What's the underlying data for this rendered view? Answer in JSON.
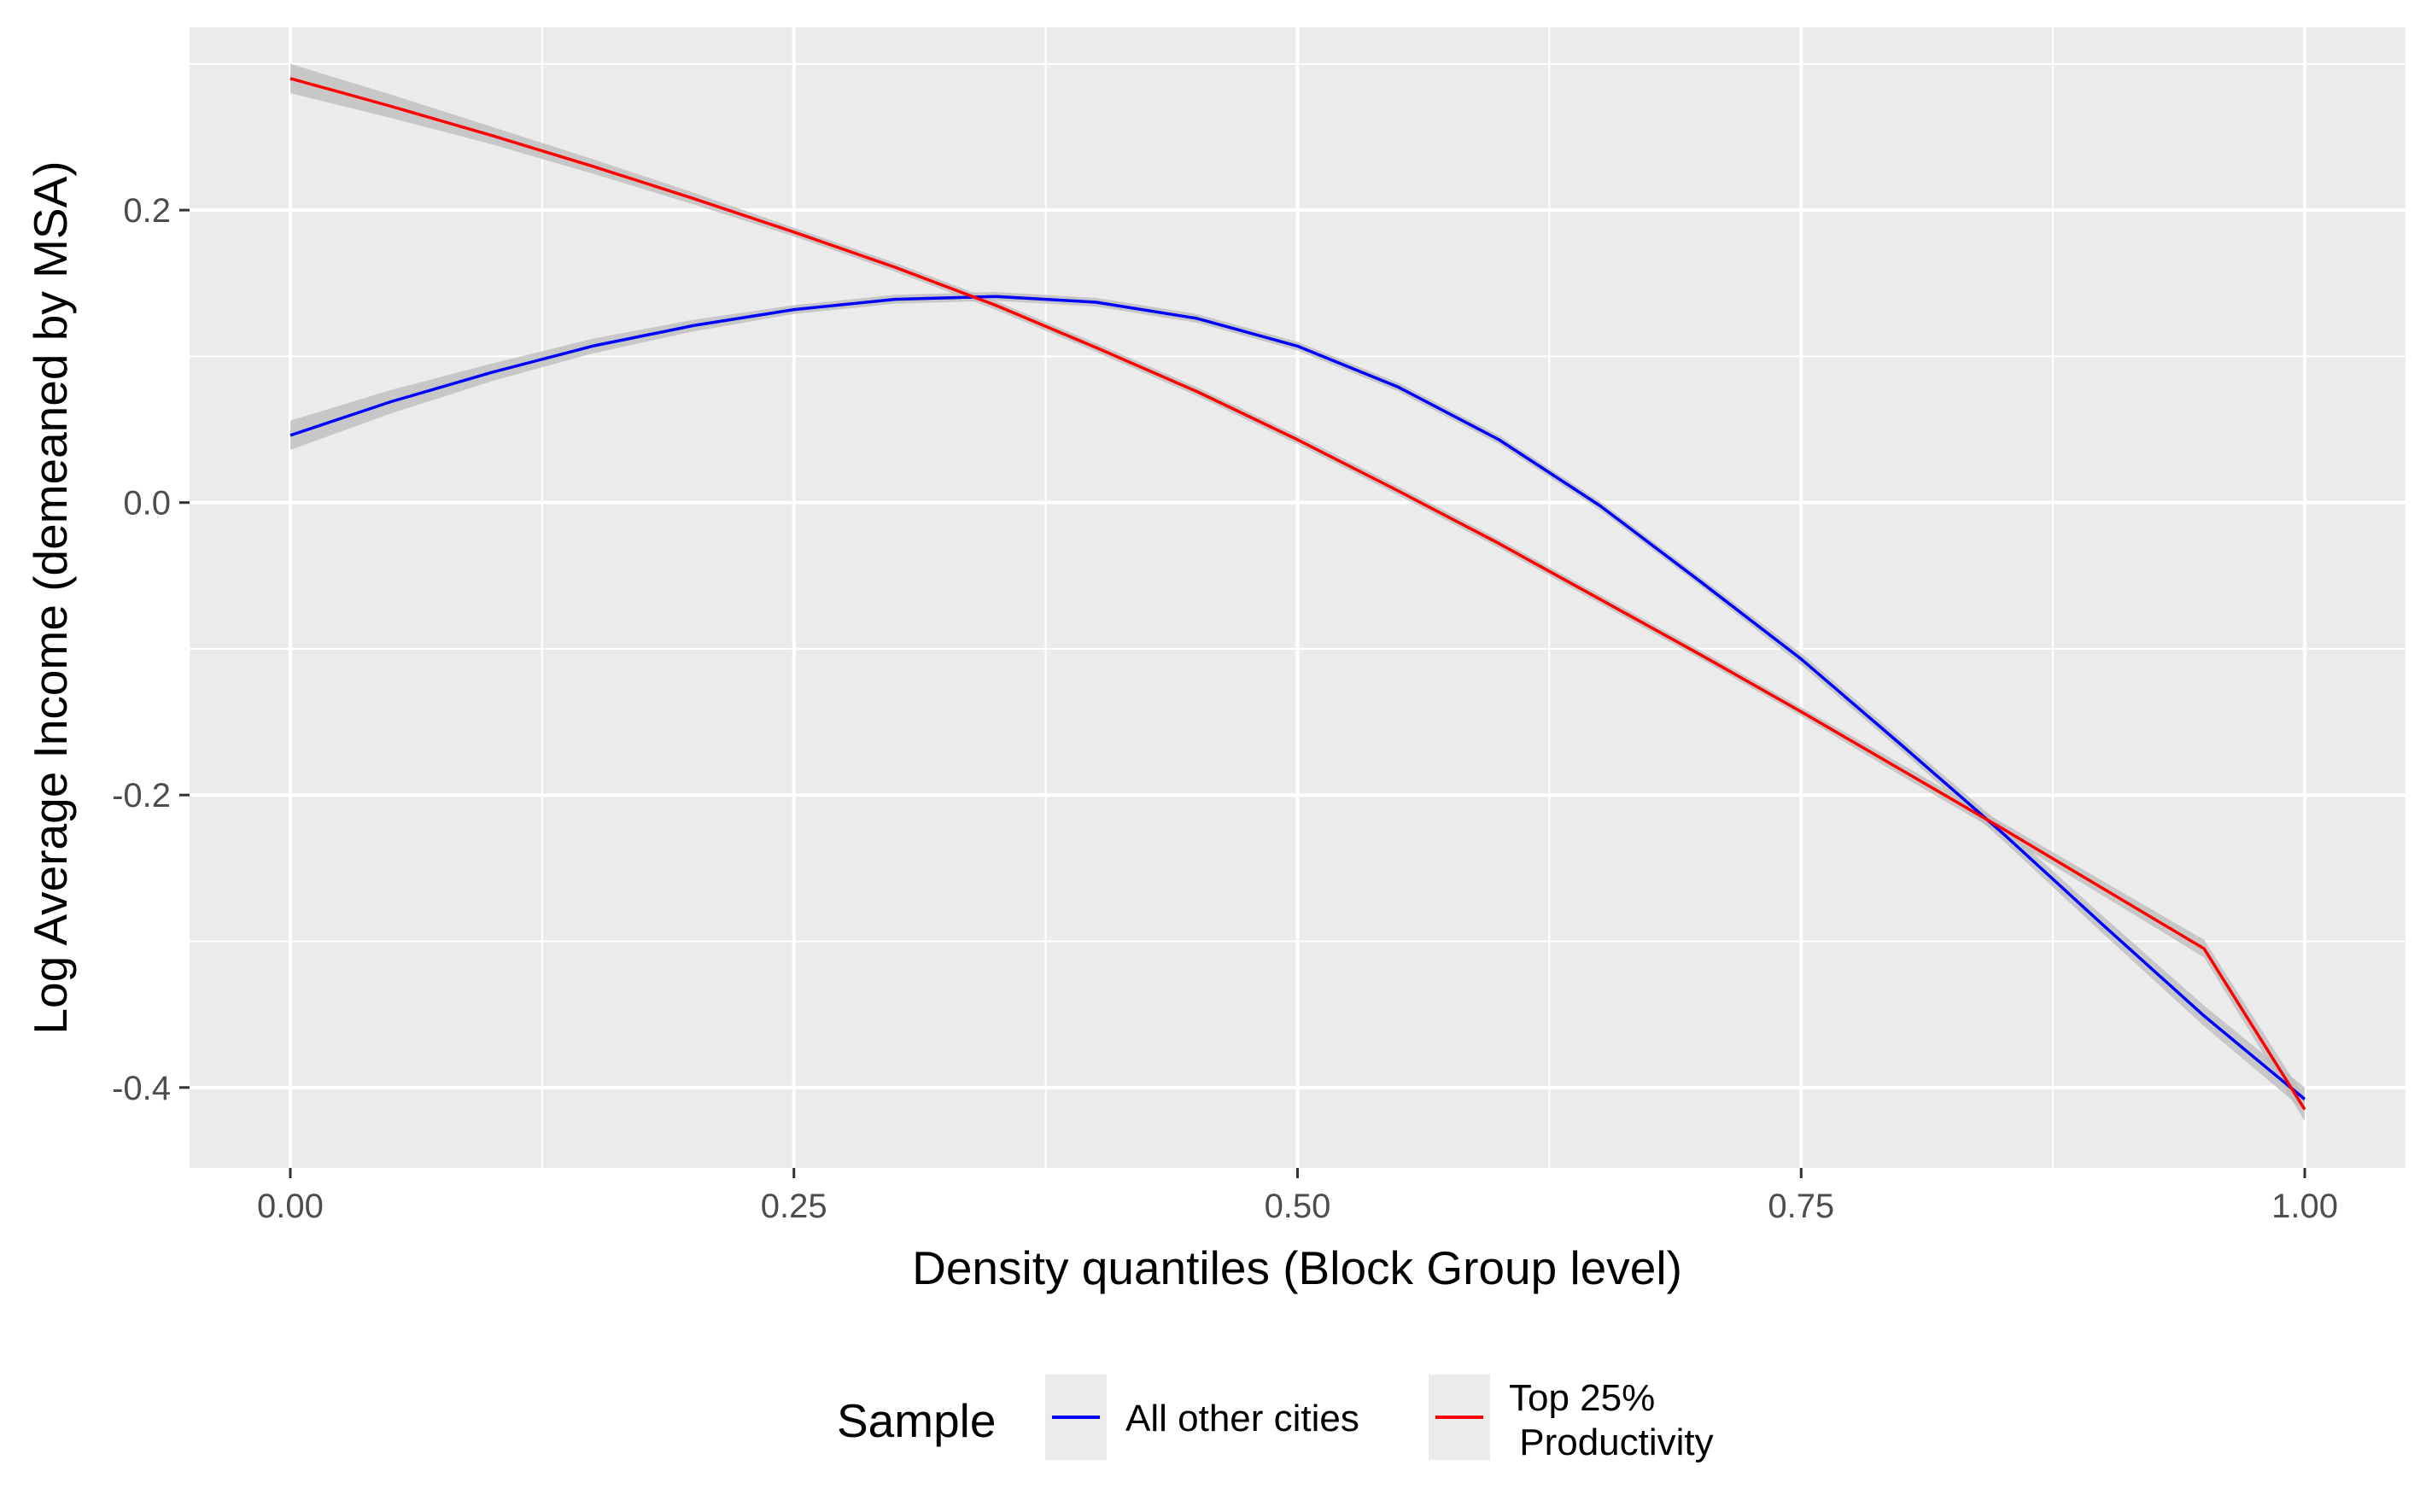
{
  "chart_data": {
    "type": "line",
    "title": "",
    "xlabel": "Density quantiles (Block Group level)",
    "ylabel": "Log Average Income (demeaned by MSA)",
    "xlim": [
      -0.05,
      1.05
    ],
    "ylim": [
      -0.455,
      0.325
    ],
    "x_ticks": [
      0.0,
      0.25,
      0.5,
      0.75,
      1.0
    ],
    "x_tick_labels": [
      "0.00",
      "0.25",
      "0.50",
      "0.75",
      "1.00"
    ],
    "y_ticks": [
      -0.4,
      -0.2,
      0.0,
      0.2
    ],
    "y_tick_labels": [
      "-0.4",
      "-0.2",
      "0.0",
      "0.2"
    ],
    "x_minor": [
      0.125,
      0.375,
      0.625,
      0.875
    ],
    "y_minor": [
      -0.3,
      -0.1,
      0.1,
      0.3
    ],
    "grid": true,
    "panel_background": "#ebebeb",
    "grid_color": "#ffffff",
    "band_color": "#bebebe",
    "legend": {
      "title": "Sample",
      "position": "bottom",
      "entries": [
        {
          "label_lines": [
            "All other cities"
          ],
          "color": "#0000ff"
        },
        {
          "label_lines": [
            "Top 25%",
            " Productivity"
          ],
          "color": "#ff0000"
        }
      ]
    },
    "series": [
      {
        "name": "All other cities",
        "color": "#0000ff",
        "x": [
          0.0,
          0.05,
          0.1,
          0.15,
          0.2,
          0.25,
          0.3,
          0.35,
          0.4,
          0.45,
          0.5,
          0.55,
          0.6,
          0.65,
          0.7,
          0.75,
          0.8,
          0.85,
          0.9,
          0.95,
          1.0
        ],
        "y": [
          0.046,
          0.069,
          0.089,
          0.107,
          0.121,
          0.132,
          0.139,
          0.141,
          0.137,
          0.126,
          0.107,
          0.079,
          0.043,
          -0.002,
          -0.054,
          -0.107,
          -0.166,
          -0.226,
          -0.289,
          -0.351,
          -0.408
        ],
        "band": [
          0.01,
          0.008,
          0.006,
          0.005,
          0.004,
          0.003,
          0.003,
          0.003,
          0.003,
          0.003,
          0.003,
          0.003,
          0.003,
          0.003,
          0.003,
          0.004,
          0.004,
          0.005,
          0.006,
          0.007,
          0.008
        ]
      },
      {
        "name": "Top 25% Productivity",
        "color": "#ff0000",
        "x": [
          0.0,
          0.05,
          0.1,
          0.15,
          0.2,
          0.25,
          0.3,
          0.35,
          0.4,
          0.45,
          0.5,
          0.55,
          0.6,
          0.65,
          0.7,
          0.75,
          0.8,
          0.85,
          0.9,
          0.95,
          1.0
        ],
        "y": [
          0.29,
          0.271,
          0.251,
          0.23,
          0.208,
          0.185,
          0.161,
          0.135,
          0.106,
          0.076,
          0.043,
          0.008,
          -0.028,
          -0.066,
          -0.104,
          -0.143,
          -0.183,
          -0.223,
          -0.264,
          -0.305,
          -0.415
        ],
        "band": [
          0.01,
          0.008,
          0.006,
          0.005,
          0.004,
          0.003,
          0.003,
          0.003,
          0.003,
          0.003,
          0.003,
          0.003,
          0.003,
          0.003,
          0.003,
          0.003,
          0.004,
          0.004,
          0.005,
          0.006,
          0.008
        ]
      }
    ]
  }
}
